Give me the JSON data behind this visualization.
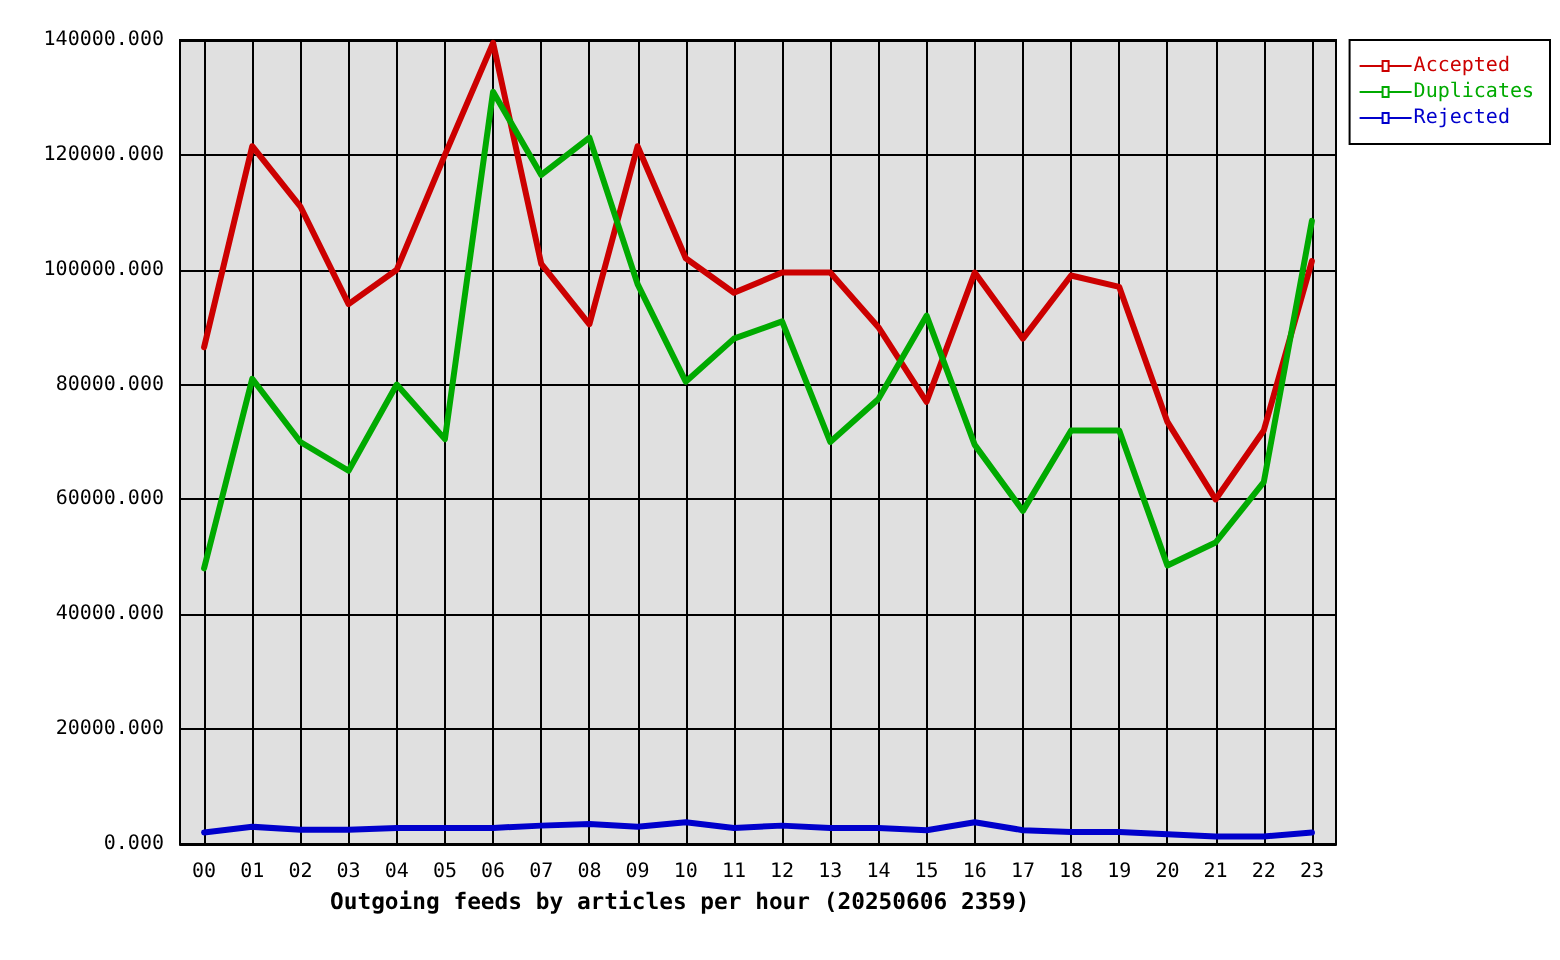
{
  "chart_data": {
    "type": "line",
    "xlabel": "Outgoing feeds by articles per hour (20250606 2359)",
    "categories": [
      "00",
      "01",
      "02",
      "03",
      "04",
      "05",
      "06",
      "07",
      "08",
      "09",
      "10",
      "11",
      "12",
      "13",
      "14",
      "15",
      "16",
      "17",
      "18",
      "19",
      "20",
      "21",
      "22",
      "23"
    ],
    "series": [
      {
        "name": "Accepted",
        "color": "#cc0000",
        "values": [
          86500,
          121500,
          111000,
          94000,
          100000,
          120000,
          139500,
          101000,
          90500,
          121500,
          102000,
          96000,
          99500,
          99500,
          90000,
          77000,
          99500,
          88000,
          99000,
          97000,
          73500,
          60000,
          72000,
          101500
        ]
      },
      {
        "name": "Duplicates",
        "color": "#00aa00",
        "values": [
          48000,
          81000,
          70000,
          65000,
          80000,
          70500,
          131000,
          116500,
          123000,
          97500,
          80500,
          88000,
          91000,
          70000,
          77500,
          92000,
          69500,
          58000,
          72000,
          72000,
          48500,
          52500,
          63000,
          108500
        ]
      },
      {
        "name": "Rejected",
        "color": "#0000cc",
        "values": [
          2000,
          3000,
          2500,
          2500,
          2800,
          2800,
          2800,
          3200,
          3500,
          3000,
          3800,
          2800,
          3200,
          2800,
          2800,
          2400,
          3800,
          2400,
          2100,
          2100,
          1700,
          1300,
          1300,
          2000
        ]
      }
    ],
    "ylim": [
      0,
      140000
    ],
    "yticks": [
      {
        "value": 0,
        "label": "0.000"
      },
      {
        "value": 20000,
        "label": "20000.000"
      },
      {
        "value": 40000,
        "label": "40000.000"
      },
      {
        "value": 60000,
        "label": "60000.000"
      },
      {
        "value": 80000,
        "label": "80000.000"
      },
      {
        "value": 100000,
        "label": "100000.000"
      },
      {
        "value": 120000,
        "label": "120000.000"
      },
      {
        "value": 140000,
        "label": "140000.000"
      }
    ],
    "grid": true,
    "legend": "top right",
    "marker": "none",
    "line_style": "solid"
  }
}
